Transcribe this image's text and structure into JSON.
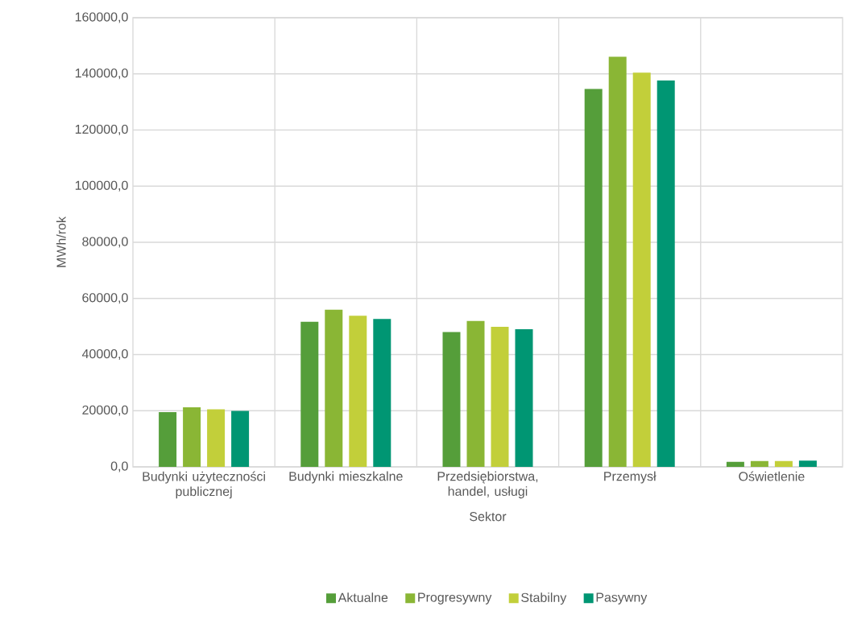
{
  "chart_data": {
    "type": "bar",
    "xlabel": "Sektor",
    "ylabel": "MWh/rok",
    "categories": [
      "Budynki użyteczności publicznej",
      "Budynki mieszkalne",
      "Przedsiębiorstwa, handel, usługi",
      "Przemysł",
      "Oświetlenie"
    ],
    "series": [
      {
        "name": "Aktualne",
        "color": "#559e3a",
        "values": [
          19500,
          51700,
          48000,
          134600,
          1800
        ]
      },
      {
        "name": "Progresywny",
        "color": "#8ab635",
        "values": [
          21200,
          56000,
          52000,
          146100,
          2100
        ]
      },
      {
        "name": "Stabilny",
        "color": "#c2cf3a",
        "values": [
          20500,
          53800,
          49900,
          140400,
          2100
        ]
      },
      {
        "name": "Pasywny",
        "color": "#009673",
        "values": [
          19900,
          52700,
          49000,
          137600,
          2200
        ]
      }
    ],
    "ylim": [
      0,
      160000
    ],
    "yticks": [
      {
        "value": 0,
        "label": "0,0"
      },
      {
        "value": 20000,
        "label": "20000,0"
      },
      {
        "value": 40000,
        "label": "40000,0"
      },
      {
        "value": 60000,
        "label": "60000,0"
      },
      {
        "value": 80000,
        "label": "80000,0"
      },
      {
        "value": 100000,
        "label": "100000,0"
      },
      {
        "value": 120000,
        "label": "120000,0"
      },
      {
        "value": 140000,
        "label": "140000,0"
      },
      {
        "value": 160000,
        "label": "160000,0"
      }
    ],
    "grid": true,
    "legend": "bottom"
  }
}
